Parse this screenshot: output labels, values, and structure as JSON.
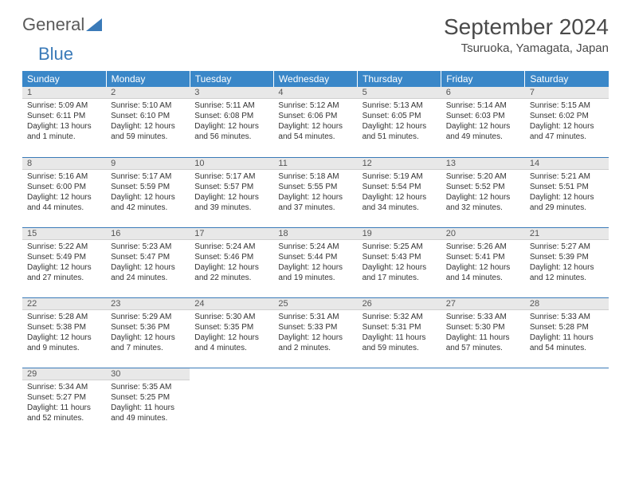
{
  "brand": {
    "part1": "General",
    "part2": "Blue"
  },
  "title": "September 2024",
  "location": "Tsuruoka, Yamagata, Japan",
  "colors": {
    "header_bg": "#3a87c8",
    "header_text": "#ffffff",
    "daynum_bg": "#e8e8e8",
    "border": "#3a7ab8",
    "text": "#333333",
    "brand_gray": "#5a5a5a",
    "brand_blue": "#3a7ab8"
  },
  "daysOfWeek": [
    "Sunday",
    "Monday",
    "Tuesday",
    "Wednesday",
    "Thursday",
    "Friday",
    "Saturday"
  ],
  "weeks": [
    [
      {
        "n": "1",
        "sr": "Sunrise: 5:09 AM",
        "ss": "Sunset: 6:11 PM",
        "dl": "Daylight: 13 hours and 1 minute."
      },
      {
        "n": "2",
        "sr": "Sunrise: 5:10 AM",
        "ss": "Sunset: 6:10 PM",
        "dl": "Daylight: 12 hours and 59 minutes."
      },
      {
        "n": "3",
        "sr": "Sunrise: 5:11 AM",
        "ss": "Sunset: 6:08 PM",
        "dl": "Daylight: 12 hours and 56 minutes."
      },
      {
        "n": "4",
        "sr": "Sunrise: 5:12 AM",
        "ss": "Sunset: 6:06 PM",
        "dl": "Daylight: 12 hours and 54 minutes."
      },
      {
        "n": "5",
        "sr": "Sunrise: 5:13 AM",
        "ss": "Sunset: 6:05 PM",
        "dl": "Daylight: 12 hours and 51 minutes."
      },
      {
        "n": "6",
        "sr": "Sunrise: 5:14 AM",
        "ss": "Sunset: 6:03 PM",
        "dl": "Daylight: 12 hours and 49 minutes."
      },
      {
        "n": "7",
        "sr": "Sunrise: 5:15 AM",
        "ss": "Sunset: 6:02 PM",
        "dl": "Daylight: 12 hours and 47 minutes."
      }
    ],
    [
      {
        "n": "8",
        "sr": "Sunrise: 5:16 AM",
        "ss": "Sunset: 6:00 PM",
        "dl": "Daylight: 12 hours and 44 minutes."
      },
      {
        "n": "9",
        "sr": "Sunrise: 5:17 AM",
        "ss": "Sunset: 5:59 PM",
        "dl": "Daylight: 12 hours and 42 minutes."
      },
      {
        "n": "10",
        "sr": "Sunrise: 5:17 AM",
        "ss": "Sunset: 5:57 PM",
        "dl": "Daylight: 12 hours and 39 minutes."
      },
      {
        "n": "11",
        "sr": "Sunrise: 5:18 AM",
        "ss": "Sunset: 5:55 PM",
        "dl": "Daylight: 12 hours and 37 minutes."
      },
      {
        "n": "12",
        "sr": "Sunrise: 5:19 AM",
        "ss": "Sunset: 5:54 PM",
        "dl": "Daylight: 12 hours and 34 minutes."
      },
      {
        "n": "13",
        "sr": "Sunrise: 5:20 AM",
        "ss": "Sunset: 5:52 PM",
        "dl": "Daylight: 12 hours and 32 minutes."
      },
      {
        "n": "14",
        "sr": "Sunrise: 5:21 AM",
        "ss": "Sunset: 5:51 PM",
        "dl": "Daylight: 12 hours and 29 minutes."
      }
    ],
    [
      {
        "n": "15",
        "sr": "Sunrise: 5:22 AM",
        "ss": "Sunset: 5:49 PM",
        "dl": "Daylight: 12 hours and 27 minutes."
      },
      {
        "n": "16",
        "sr": "Sunrise: 5:23 AM",
        "ss": "Sunset: 5:47 PM",
        "dl": "Daylight: 12 hours and 24 minutes."
      },
      {
        "n": "17",
        "sr": "Sunrise: 5:24 AM",
        "ss": "Sunset: 5:46 PM",
        "dl": "Daylight: 12 hours and 22 minutes."
      },
      {
        "n": "18",
        "sr": "Sunrise: 5:24 AM",
        "ss": "Sunset: 5:44 PM",
        "dl": "Daylight: 12 hours and 19 minutes."
      },
      {
        "n": "19",
        "sr": "Sunrise: 5:25 AM",
        "ss": "Sunset: 5:43 PM",
        "dl": "Daylight: 12 hours and 17 minutes."
      },
      {
        "n": "20",
        "sr": "Sunrise: 5:26 AM",
        "ss": "Sunset: 5:41 PM",
        "dl": "Daylight: 12 hours and 14 minutes."
      },
      {
        "n": "21",
        "sr": "Sunrise: 5:27 AM",
        "ss": "Sunset: 5:39 PM",
        "dl": "Daylight: 12 hours and 12 minutes."
      }
    ],
    [
      {
        "n": "22",
        "sr": "Sunrise: 5:28 AM",
        "ss": "Sunset: 5:38 PM",
        "dl": "Daylight: 12 hours and 9 minutes."
      },
      {
        "n": "23",
        "sr": "Sunrise: 5:29 AM",
        "ss": "Sunset: 5:36 PM",
        "dl": "Daylight: 12 hours and 7 minutes."
      },
      {
        "n": "24",
        "sr": "Sunrise: 5:30 AM",
        "ss": "Sunset: 5:35 PM",
        "dl": "Daylight: 12 hours and 4 minutes."
      },
      {
        "n": "25",
        "sr": "Sunrise: 5:31 AM",
        "ss": "Sunset: 5:33 PM",
        "dl": "Daylight: 12 hours and 2 minutes."
      },
      {
        "n": "26",
        "sr": "Sunrise: 5:32 AM",
        "ss": "Sunset: 5:31 PM",
        "dl": "Daylight: 11 hours and 59 minutes."
      },
      {
        "n": "27",
        "sr": "Sunrise: 5:33 AM",
        "ss": "Sunset: 5:30 PM",
        "dl": "Daylight: 11 hours and 57 minutes."
      },
      {
        "n": "28",
        "sr": "Sunrise: 5:33 AM",
        "ss": "Sunset: 5:28 PM",
        "dl": "Daylight: 11 hours and 54 minutes."
      }
    ],
    [
      {
        "n": "29",
        "sr": "Sunrise: 5:34 AM",
        "ss": "Sunset: 5:27 PM",
        "dl": "Daylight: 11 hours and 52 minutes."
      },
      {
        "n": "30",
        "sr": "Sunrise: 5:35 AM",
        "ss": "Sunset: 5:25 PM",
        "dl": "Daylight: 11 hours and 49 minutes."
      },
      null,
      null,
      null,
      null,
      null
    ]
  ]
}
